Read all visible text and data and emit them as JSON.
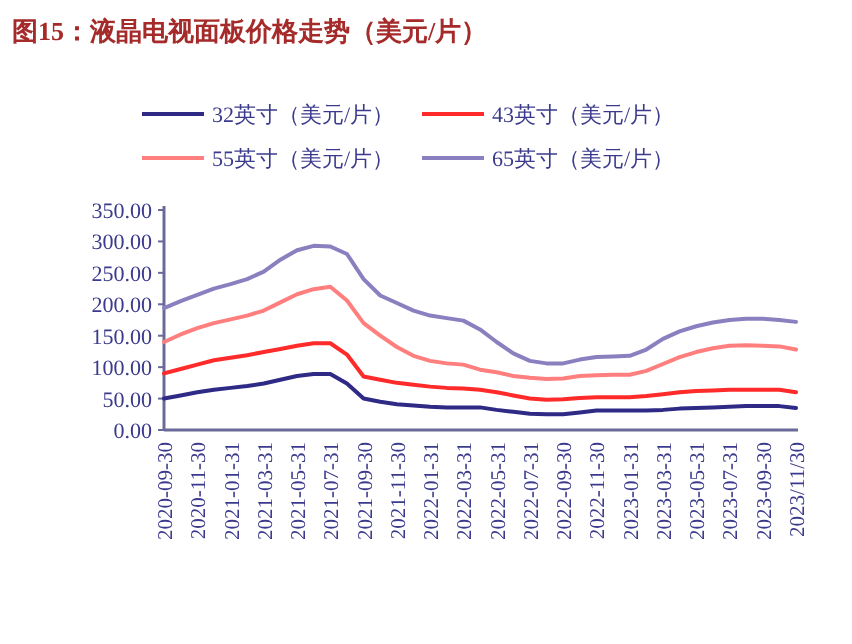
{
  "chart_data": {
    "type": "line",
    "title": "图15：液晶电视面板价格走势（美元/片）",
    "categories": [
      "2020-09-30",
      null,
      "2020-11-30",
      null,
      "2021-01-31",
      null,
      "2021-03-31",
      null,
      "2021-05-31",
      null,
      "2021-07-31",
      null,
      "2021-09-30",
      null,
      "2021-11-30",
      null,
      "2022-01-31",
      null,
      "2022-03-31",
      null,
      "2022-05-31",
      null,
      "2022-07-31",
      null,
      "2022-09-30",
      null,
      "2022-11-30",
      null,
      "2023-01-31",
      null,
      "2023-03-31",
      null,
      "2023-05-31",
      null,
      "2023-07-31",
      null,
      "2023-09-30",
      null,
      "2023/11/30"
    ],
    "series": [
      {
        "name": "32英寸（美元/片）",
        "color": "#2e2a86",
        "values": [
          50,
          55,
          60,
          64,
          67,
          70,
          74,
          80,
          86,
          89,
          89,
          74,
          50,
          45,
          41,
          39,
          37,
          36,
          36,
          36,
          32,
          29,
          26,
          25,
          25,
          28,
          31,
          31,
          31,
          31,
          32,
          34,
          35,
          36,
          37,
          38,
          38,
          38,
          35
        ]
      },
      {
        "name": "43英寸（美元/片）",
        "color": "#ff2a2a",
        "values": [
          90,
          97,
          104,
          111,
          115,
          119,
          124,
          129,
          134,
          138,
          138,
          120,
          85,
          80,
          75,
          72,
          69,
          67,
          66,
          64,
          60,
          55,
          50,
          48,
          49,
          51,
          52,
          52,
          52,
          54,
          57,
          60,
          62,
          63,
          64,
          64,
          64,
          64,
          60
        ]
      },
      {
        "name": "55英寸（美元/片）",
        "color": "#ff7f7f",
        "values": [
          140,
          152,
          162,
          170,
          176,
          182,
          190,
          203,
          216,
          224,
          228,
          206,
          170,
          150,
          132,
          118,
          110,
          106,
          104,
          96,
          92,
          86,
          83,
          81,
          82,
          86,
          87,
          88,
          88,
          94,
          105,
          116,
          124,
          130,
          134,
          135,
          134,
          133,
          128
        ]
      },
      {
        "name": "65英寸（美元/片）",
        "color": "#8a80c0",
        "values": [
          194,
          205,
          215,
          225,
          232,
          240,
          252,
          271,
          286,
          293,
          292,
          280,
          240,
          214,
          202,
          190,
          182,
          178,
          174,
          160,
          140,
          122,
          110,
          106,
          106,
          112,
          116,
          117,
          118,
          128,
          145,
          157,
          165,
          171,
          175,
          177,
          177,
          175,
          172
        ]
      }
    ],
    "ylim": [
      0,
      350
    ],
    "yticks": [
      {
        "value": 0,
        "label": "0.00"
      },
      {
        "value": 50,
        "label": "50.00"
      },
      {
        "value": 100,
        "label": "100.00"
      },
      {
        "value": 150,
        "label": "150.00"
      },
      {
        "value": 200,
        "label": "200.00"
      },
      {
        "value": 250,
        "label": "250.00"
      },
      {
        "value": 300,
        "label": "300.00"
      },
      {
        "value": 350,
        "label": "350.00"
      }
    ],
    "legend": "top"
  }
}
